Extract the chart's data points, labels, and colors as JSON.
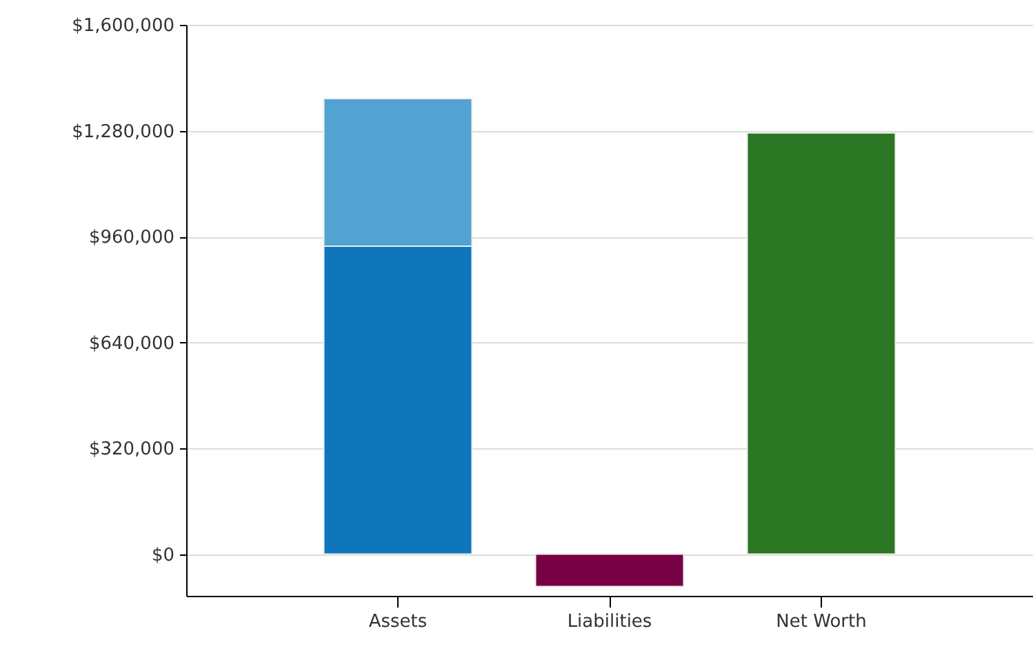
{
  "chart_data": {
    "type": "bar",
    "stacked": true,
    "categories": [
      "Assets",
      "Liabilities",
      "Net Worth"
    ],
    "series": [
      {
        "color": "#0f76bb",
        "values": [
          931000,
          null,
          null
        ]
      },
      {
        "color": "#52a2d2",
        "values": [
          446000,
          null,
          null
        ]
      },
      {
        "color": "#780044",
        "values": [
          null,
          -98000,
          null
        ]
      },
      {
        "color": "#2a7623",
        "values": [
          null,
          null,
          1273000
        ]
      }
    ],
    "ylim": [
      -126000,
      1600000
    ],
    "yticks": [
      {
        "value": 0,
        "label": "$0"
      },
      {
        "value": 320000,
        "label": "$320,000"
      },
      {
        "value": 640000,
        "label": "$640,000"
      },
      {
        "value": 960000,
        "label": "$960,000"
      },
      {
        "value": 1280000,
        "label": "$1,280,000"
      },
      {
        "value": 1600000,
        "label": "$1,600,000"
      }
    ],
    "grid": "y"
  }
}
